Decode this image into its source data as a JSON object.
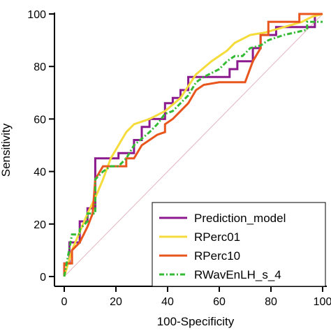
{
  "chart_data": {
    "type": "line",
    "title": "",
    "xlabel": "100-Specificity",
    "ylabel": "Sensitivity",
    "xlim": [
      0,
      100
    ],
    "ylim": [
      0,
      100
    ],
    "x_ticks": [
      "0",
      "20",
      "40",
      "60",
      "80",
      "100"
    ],
    "y_ticks": [
      "0",
      "20",
      "40",
      "60",
      "80",
      "100"
    ],
    "x_tick_values": [
      0,
      20,
      40,
      60,
      80,
      100
    ],
    "y_tick_values": [
      0,
      20,
      40,
      60,
      80,
      100
    ],
    "grid": false,
    "legend_position": "bottom-right",
    "reference_line": {
      "from": [
        0,
        0
      ],
      "to": [
        100,
        100
      ],
      "color": "#e4b4bf"
    },
    "series": [
      {
        "name": "Prediction_model",
        "color": "#8b1a8e",
        "dash": "solid",
        "points": [
          [
            0,
            0
          ],
          [
            0,
            5
          ],
          [
            2,
            5
          ],
          [
            2,
            13
          ],
          [
            6,
            13
          ],
          [
            6,
            21
          ],
          [
            9,
            21
          ],
          [
            9,
            26
          ],
          [
            12,
            26
          ],
          [
            12,
            45
          ],
          [
            21,
            45
          ],
          [
            21,
            47
          ],
          [
            27,
            47
          ],
          [
            27,
            52
          ],
          [
            30,
            52
          ],
          [
            30,
            57
          ],
          [
            33,
            57
          ],
          [
            33,
            60
          ],
          [
            39,
            60
          ],
          [
            39,
            66
          ],
          [
            42,
            66
          ],
          [
            42,
            68
          ],
          [
            45,
            68
          ],
          [
            45,
            71
          ],
          [
            48,
            71
          ],
          [
            48,
            76
          ],
          [
            64,
            76
          ],
          [
            64,
            79
          ],
          [
            67,
            79
          ],
          [
            67,
            82
          ],
          [
            73,
            82
          ],
          [
            73,
            87
          ],
          [
            76,
            87
          ],
          [
            76,
            92
          ],
          [
            82,
            92
          ],
          [
            82,
            95
          ],
          [
            97,
            95
          ],
          [
            97,
            100
          ],
          [
            100,
            100
          ]
        ]
      },
      {
        "name": "RPerc01",
        "color": "#f5dc3c",
        "dash": "solid",
        "points": [
          [
            0,
            0
          ],
          [
            3,
            10
          ],
          [
            6,
            17
          ],
          [
            9,
            24
          ],
          [
            12,
            30
          ],
          [
            15,
            37
          ],
          [
            18,
            45
          ],
          [
            21,
            50
          ],
          [
            24,
            55
          ],
          [
            27,
            58
          ],
          [
            33,
            60
          ],
          [
            39,
            63
          ],
          [
            45,
            68
          ],
          [
            51,
            77
          ],
          [
            57,
            82
          ],
          [
            63,
            86
          ],
          [
            66,
            89
          ],
          [
            72,
            92
          ],
          [
            78,
            93
          ],
          [
            85,
            95
          ],
          [
            92,
            97
          ],
          [
            96,
            99
          ],
          [
            100,
            100
          ]
        ]
      },
      {
        "name": "RPerc10",
        "color": "#e8561e",
        "dash": "solid",
        "points": [
          [
            0,
            0
          ],
          [
            0,
            5
          ],
          [
            3,
            5
          ],
          [
            3,
            10
          ],
          [
            6,
            13
          ],
          [
            9,
            19
          ],
          [
            11,
            24
          ],
          [
            12,
            37
          ],
          [
            15,
            42
          ],
          [
            18,
            42
          ],
          [
            24,
            42
          ],
          [
            24,
            45
          ],
          [
            27,
            45
          ],
          [
            30,
            50
          ],
          [
            36,
            54
          ],
          [
            39,
            55
          ],
          [
            39,
            58
          ],
          [
            42,
            60
          ],
          [
            48,
            66
          ],
          [
            51,
            71
          ],
          [
            54,
            73
          ],
          [
            60,
            74
          ],
          [
            66,
            74
          ],
          [
            69,
            74
          ],
          [
            70,
            74
          ],
          [
            73,
            82
          ],
          [
            76,
            87
          ],
          [
            76,
            92
          ],
          [
            79,
            92
          ],
          [
            79,
            97
          ],
          [
            91,
            97
          ],
          [
            91,
            100
          ],
          [
            100,
            100
          ]
        ]
      },
      {
        "name": "RWavEnLH_s_4",
        "color": "#33bb33",
        "dash": "dashdot",
        "points": [
          [
            0,
            0
          ],
          [
            3,
            16
          ],
          [
            6,
            16
          ],
          [
            6,
            18
          ],
          [
            9,
            21
          ],
          [
            9,
            24
          ],
          [
            12,
            24
          ],
          [
            12,
            37
          ],
          [
            15,
            40
          ],
          [
            18,
            42
          ],
          [
            21,
            42
          ],
          [
            24,
            45
          ],
          [
            27,
            50
          ],
          [
            33,
            55
          ],
          [
            36,
            58
          ],
          [
            39,
            62
          ],
          [
            42,
            63
          ],
          [
            45,
            66
          ],
          [
            48,
            69
          ],
          [
            51,
            74
          ],
          [
            54,
            76
          ],
          [
            60,
            79
          ],
          [
            63,
            82
          ],
          [
            66,
            84
          ],
          [
            69,
            84
          ],
          [
            72,
            87
          ],
          [
            76,
            88
          ],
          [
            79,
            90
          ],
          [
            85,
            92
          ],
          [
            94,
            94
          ],
          [
            94,
            97
          ],
          [
            100,
            97
          ]
        ]
      }
    ]
  }
}
